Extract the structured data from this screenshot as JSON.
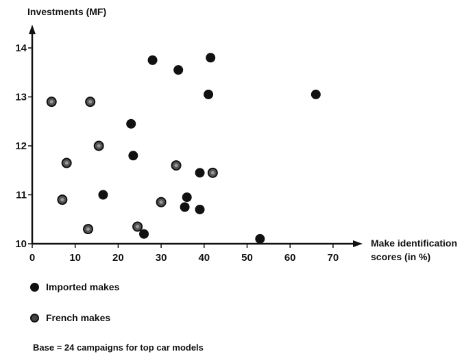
{
  "chart_data": {
    "type": "scatter",
    "ylabel": "Investments (MF)",
    "xlabel_lines": [
      "Make identification",
      "scores (in %)"
    ],
    "xlim": [
      0,
      75
    ],
    "ylim": [
      10,
      14.5
    ],
    "xticks": [
      0,
      10,
      20,
      30,
      40,
      50,
      60,
      70
    ],
    "yticks": [
      10,
      11,
      12,
      13,
      14
    ],
    "series": [
      {
        "name": "Imported makes",
        "color": "#111111",
        "points": [
          {
            "x": 28,
            "y": 13.75
          },
          {
            "x": 34,
            "y": 13.55
          },
          {
            "x": 41.5,
            "y": 13.8
          },
          {
            "x": 41,
            "y": 13.05
          },
          {
            "x": 66,
            "y": 13.05
          },
          {
            "x": 23,
            "y": 12.45
          },
          {
            "x": 23.5,
            "y": 11.8
          },
          {
            "x": 39,
            "y": 11.45
          },
          {
            "x": 16.5,
            "y": 11.0
          },
          {
            "x": 36,
            "y": 10.95
          },
          {
            "x": 35.5,
            "y": 10.75
          },
          {
            "x": 39,
            "y": 10.7
          },
          {
            "x": 26,
            "y": 10.2
          },
          {
            "x": 53,
            "y": 10.1
          }
        ]
      },
      {
        "name": "French makes",
        "color": "#555555",
        "points": [
          {
            "x": 4.5,
            "y": 12.9
          },
          {
            "x": 13.5,
            "y": 12.9
          },
          {
            "x": 15.5,
            "y": 12.0
          },
          {
            "x": 8,
            "y": 11.65
          },
          {
            "x": 33.5,
            "y": 11.6
          },
          {
            "x": 42,
            "y": 11.45
          },
          {
            "x": 7,
            "y": 10.9
          },
          {
            "x": 30,
            "y": 10.85
          },
          {
            "x": 13,
            "y": 10.3
          },
          {
            "x": 24.5,
            "y": 10.35
          }
        ]
      }
    ],
    "legend": [
      "Imported makes",
      "French makes"
    ],
    "note": "Base = 24 campaigns for top car models"
  }
}
